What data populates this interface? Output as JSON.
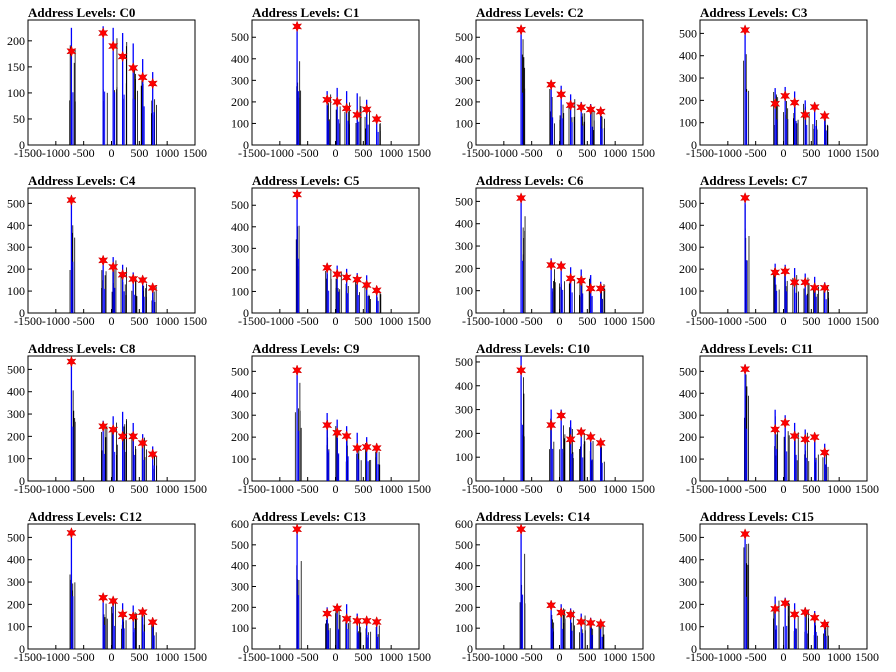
{
  "chart_data": [
    {
      "type": "line",
      "title": "Address Levels: C0",
      "xlim": [
        -1500,
        1500
      ],
      "xticks": [
        -1500,
        -1000,
        -500,
        0,
        500,
        1000,
        1500
      ],
      "ylim": [
        0,
        240
      ],
      "yticks": [
        0,
        50,
        100,
        150,
        200
      ],
      "peaks": [
        {
          "x": -720,
          "y": 225,
          "star": 180
        },
        {
          "x": -150,
          "y": 228,
          "star": 215
        },
        {
          "x": 30,
          "y": 225,
          "star": 190
        },
        {
          "x": 200,
          "y": 215,
          "star": 170
        },
        {
          "x": 390,
          "y": 195,
          "star": 148
        },
        {
          "x": 560,
          "y": 165,
          "star": 130
        },
        {
          "x": 740,
          "y": 140,
          "star": 118
        }
      ]
    },
    {
      "type": "line",
      "title": "Address Levels: C1",
      "xlim": [
        -1500,
        1500
      ],
      "xticks": [
        -1500,
        -1000,
        -500,
        0,
        500,
        1000,
        1500
      ],
      "ylim": [
        0,
        580
      ],
      "yticks": [
        0,
        100,
        200,
        300,
        400,
        500
      ],
      "peaks": [
        {
          "x": -690,
          "y": 555,
          "star": 550
        },
        {
          "x": -150,
          "y": 250,
          "star": 210
        },
        {
          "x": 30,
          "y": 265,
          "star": 200
        },
        {
          "x": 200,
          "y": 250,
          "star": 170
        },
        {
          "x": 390,
          "y": 240,
          "star": 140
        },
        {
          "x": 560,
          "y": 210,
          "star": 165
        },
        {
          "x": 740,
          "y": 135,
          "star": 120
        }
      ]
    },
    {
      "type": "line",
      "title": "Address Levels: C2",
      "xlim": [
        -1500,
        1500
      ],
      "xticks": [
        -1500,
        -1000,
        -500,
        0,
        500,
        1000,
        1500
      ],
      "ylim": [
        0,
        580
      ],
      "yticks": [
        0,
        100,
        200,
        300,
        400,
        500
      ],
      "peaks": [
        {
          "x": -690,
          "y": 540,
          "star": 535
        },
        {
          "x": -150,
          "y": 285,
          "star": 280
        },
        {
          "x": 30,
          "y": 275,
          "star": 235
        },
        {
          "x": 200,
          "y": 235,
          "star": 185
        },
        {
          "x": 390,
          "y": 200,
          "star": 175
        },
        {
          "x": 560,
          "y": 190,
          "star": 165
        },
        {
          "x": 740,
          "y": 170,
          "star": 155
        }
      ]
    },
    {
      "type": "line",
      "title": "Address Levels: C3",
      "xlim": [
        -1500,
        1500
      ],
      "xticks": [
        -1500,
        -1000,
        -500,
        0,
        500,
        1000,
        1500
      ],
      "ylim": [
        0,
        560
      ],
      "yticks": [
        0,
        100,
        200,
        300,
        400,
        500
      ],
      "peaks": [
        {
          "x": -690,
          "y": 530,
          "star": 515
        },
        {
          "x": -150,
          "y": 255,
          "star": 185
        },
        {
          "x": 30,
          "y": 260,
          "star": 220
        },
        {
          "x": 200,
          "y": 240,
          "star": 190
        },
        {
          "x": 390,
          "y": 200,
          "star": 135
        },
        {
          "x": 560,
          "y": 190,
          "star": 170
        },
        {
          "x": 740,
          "y": 145,
          "star": 130
        }
      ]
    },
    {
      "type": "line",
      "title": "Address Levels: C4",
      "xlim": [
        -1500,
        1500
      ],
      "xticks": [
        -1500,
        -1000,
        -500,
        0,
        500,
        1000,
        1500
      ],
      "ylim": [
        0,
        570
      ],
      "yticks": [
        0,
        100,
        200,
        300,
        400,
        500
      ],
      "peaks": [
        {
          "x": -720,
          "y": 520,
          "star": 515
        },
        {
          "x": -150,
          "y": 245,
          "star": 240
        },
        {
          "x": 30,
          "y": 255,
          "star": 210
        },
        {
          "x": 200,
          "y": 220,
          "star": 175
        },
        {
          "x": 390,
          "y": 185,
          "star": 155
        },
        {
          "x": 560,
          "y": 165,
          "star": 150
        },
        {
          "x": 740,
          "y": 130,
          "star": 115
        }
      ]
    },
    {
      "type": "line",
      "title": "Address Levels: C5",
      "xlim": [
        -1500,
        1500
      ],
      "xticks": [
        -1500,
        -1000,
        -500,
        0,
        500,
        1000,
        1500
      ],
      "ylim": [
        0,
        580
      ],
      "yticks": [
        0,
        100,
        200,
        300,
        400,
        500
      ],
      "peaks": [
        {
          "x": -690,
          "y": 560,
          "star": 550
        },
        {
          "x": -150,
          "y": 230,
          "star": 210
        },
        {
          "x": 30,
          "y": 220,
          "star": 180
        },
        {
          "x": 200,
          "y": 205,
          "star": 165
        },
        {
          "x": 390,
          "y": 185,
          "star": 155
        },
        {
          "x": 560,
          "y": 175,
          "star": 130
        },
        {
          "x": 740,
          "y": 125,
          "star": 105
        }
      ]
    },
    {
      "type": "line",
      "title": "Address Levels: C6",
      "xlim": [
        -1500,
        1500
      ],
      "xticks": [
        -1500,
        -1000,
        -500,
        0,
        500,
        1000,
        1500
      ],
      "ylim": [
        0,
        560
      ],
      "yticks": [
        0,
        100,
        200,
        300,
        400,
        500
      ],
      "peaks": [
        {
          "x": -690,
          "y": 520,
          "star": 515
        },
        {
          "x": -150,
          "y": 245,
          "star": 215
        },
        {
          "x": 30,
          "y": 230,
          "star": 210
        },
        {
          "x": 200,
          "y": 205,
          "star": 155
        },
        {
          "x": 390,
          "y": 195,
          "star": 145
        },
        {
          "x": 560,
          "y": 170,
          "star": 110
        },
        {
          "x": 740,
          "y": 140,
          "star": 110
        }
      ]
    },
    {
      "type": "line",
      "title": "Address Levels: C7",
      "xlim": [
        -1500,
        1500
      ],
      "xticks": [
        -1500,
        -1000,
        -500,
        0,
        500,
        1000,
        1500
      ],
      "ylim": [
        0,
        570
      ],
      "yticks": [
        0,
        100,
        200,
        300,
        400,
        500
      ],
      "peaks": [
        {
          "x": -690,
          "y": 535,
          "star": 525
        },
        {
          "x": -150,
          "y": 225,
          "star": 185
        },
        {
          "x": 30,
          "y": 220,
          "star": 190
        },
        {
          "x": 200,
          "y": 205,
          "star": 140
        },
        {
          "x": 390,
          "y": 180,
          "star": 140
        },
        {
          "x": 560,
          "y": 165,
          "star": 115
        },
        {
          "x": 740,
          "y": 140,
          "star": 115
        }
      ]
    },
    {
      "type": "line",
      "title": "Address Levels: C8",
      "xlim": [
        -1500,
        1500
      ],
      "xticks": [
        -1500,
        -1000,
        -500,
        0,
        500,
        1000,
        1500
      ],
      "ylim": [
        0,
        560
      ],
      "yticks": [
        0,
        100,
        200,
        300,
        400,
        500
      ],
      "peaks": [
        {
          "x": -720,
          "y": 540,
          "star": 535
        },
        {
          "x": -150,
          "y": 270,
          "star": 245
        },
        {
          "x": 30,
          "y": 290,
          "star": 230
        },
        {
          "x": 200,
          "y": 310,
          "star": 200
        },
        {
          "x": 390,
          "y": 260,
          "star": 200
        },
        {
          "x": 560,
          "y": 210,
          "star": 170
        },
        {
          "x": 740,
          "y": 155,
          "star": 120
        }
      ]
    },
    {
      "type": "line",
      "title": "Address Levels: C9",
      "xlim": [
        -1500,
        1500
      ],
      "xticks": [
        -1500,
        -1000,
        -500,
        0,
        500,
        1000,
        1500
      ],
      "ylim": [
        0,
        570
      ],
      "yticks": [
        0,
        100,
        200,
        300,
        400,
        500
      ],
      "peaks": [
        {
          "x": -690,
          "y": 510,
          "star": 505
        },
        {
          "x": -150,
          "y": 310,
          "star": 255
        },
        {
          "x": 30,
          "y": 280,
          "star": 220
        },
        {
          "x": 200,
          "y": 250,
          "star": 205
        },
        {
          "x": 390,
          "y": 220,
          "star": 150
        },
        {
          "x": 560,
          "y": 200,
          "star": 155
        },
        {
          "x": 740,
          "y": 170,
          "star": 150
        }
      ]
    },
    {
      "type": "line",
      "title": "Address Levels: C10",
      "xlim": [
        -1500,
        1500
      ],
      "xticks": [
        -1500,
        -1000,
        -500,
        0,
        500,
        1000,
        1500
      ],
      "ylim": [
        0,
        525
      ],
      "yticks": [
        0,
        100,
        200,
        300,
        400,
        500
      ],
      "peaks": [
        {
          "x": -690,
          "y": 525,
          "star": 465
        },
        {
          "x": -150,
          "y": 300,
          "star": 235
        },
        {
          "x": 30,
          "y": 300,
          "star": 275
        },
        {
          "x": 200,
          "y": 255,
          "star": 175
        },
        {
          "x": 390,
          "y": 220,
          "star": 205
        },
        {
          "x": 560,
          "y": 200,
          "star": 185
        },
        {
          "x": 740,
          "y": 170,
          "star": 160
        }
      ]
    },
    {
      "type": "line",
      "title": "Address Levels: C11",
      "xlim": [
        -1500,
        1500
      ],
      "xticks": [
        -1500,
        -1000,
        -500,
        0,
        500,
        1000,
        1500
      ],
      "ylim": [
        0,
        570
      ],
      "yticks": [
        0,
        100,
        200,
        300,
        400,
        500
      ],
      "peaks": [
        {
          "x": -690,
          "y": 530,
          "star": 510
        },
        {
          "x": -150,
          "y": 325,
          "star": 235
        },
        {
          "x": 30,
          "y": 300,
          "star": 265
        },
        {
          "x": 200,
          "y": 265,
          "star": 205
        },
        {
          "x": 390,
          "y": 235,
          "star": 190
        },
        {
          "x": 560,
          "y": 215,
          "star": 200
        },
        {
          "x": 740,
          "y": 170,
          "star": 130
        }
      ]
    },
    {
      "type": "line",
      "title": "Address Levels: C12",
      "xlim": [
        -1500,
        1500
      ],
      "xticks": [
        -1500,
        -1000,
        -500,
        0,
        500,
        1000,
        1500
      ],
      "ylim": [
        0,
        560
      ],
      "yticks": [
        0,
        100,
        200,
        300,
        400,
        500
      ],
      "peaks": [
        {
          "x": -720,
          "y": 525,
          "star": 520
        },
        {
          "x": -150,
          "y": 240,
          "star": 230
        },
        {
          "x": 30,
          "y": 230,
          "star": 215
        },
        {
          "x": 200,
          "y": 205,
          "star": 155
        },
        {
          "x": 390,
          "y": 195,
          "star": 145
        },
        {
          "x": 560,
          "y": 175,
          "star": 165
        },
        {
          "x": 740,
          "y": 135,
          "star": 120
        }
      ]
    },
    {
      "type": "line",
      "title": "Address Levels: C13",
      "xlim": [
        -1500,
        1500
      ],
      "xticks": [
        -1500,
        -1000,
        -500,
        0,
        500,
        1000,
        1500
      ],
      "ylim": [
        0,
        600
      ],
      "yticks": [
        0,
        100,
        200,
        300,
        400,
        500,
        600
      ],
      "peaks": [
        {
          "x": -690,
          "y": 575,
          "star": 575
        },
        {
          "x": -150,
          "y": 200,
          "star": 170
        },
        {
          "x": 30,
          "y": 215,
          "star": 195
        },
        {
          "x": 200,
          "y": 215,
          "star": 145
        },
        {
          "x": 390,
          "y": 170,
          "star": 135
        },
        {
          "x": 560,
          "y": 150,
          "star": 135
        },
        {
          "x": 740,
          "y": 130,
          "star": 130
        }
      ]
    },
    {
      "type": "line",
      "title": "Address Levels: C14",
      "xlim": [
        -1500,
        1500
      ],
      "xticks": [
        -1500,
        -1000,
        -500,
        0,
        500,
        1000,
        1500
      ],
      "ylim": [
        0,
        600
      ],
      "yticks": [
        0,
        100,
        200,
        300,
        400,
        500,
        600
      ],
      "peaks": [
        {
          "x": -690,
          "y": 580,
          "star": 575
        },
        {
          "x": -150,
          "y": 220,
          "star": 210
        },
        {
          "x": 30,
          "y": 215,
          "star": 175
        },
        {
          "x": 200,
          "y": 195,
          "star": 165
        },
        {
          "x": 390,
          "y": 170,
          "star": 130
        },
        {
          "x": 560,
          "y": 150,
          "star": 125
        },
        {
          "x": 740,
          "y": 130,
          "star": 120
        }
      ]
    },
    {
      "type": "line",
      "title": "Address Levels: C15",
      "xlim": [
        -1500,
        1500
      ],
      "xticks": [
        -1500,
        -1000,
        -500,
        0,
        500,
        1000,
        1500
      ],
      "ylim": [
        0,
        560
      ],
      "yticks": [
        0,
        100,
        200,
        300,
        400,
        500
      ],
      "peaks": [
        {
          "x": -690,
          "y": 520,
          "star": 515
        },
        {
          "x": -150,
          "y": 235,
          "star": 180
        },
        {
          "x": 30,
          "y": 230,
          "star": 205
        },
        {
          "x": 200,
          "y": 205,
          "star": 155
        },
        {
          "x": 390,
          "y": 185,
          "star": 165
        },
        {
          "x": 560,
          "y": 170,
          "star": 140
        },
        {
          "x": 740,
          "y": 130,
          "star": 110
        }
      ]
    }
  ]
}
